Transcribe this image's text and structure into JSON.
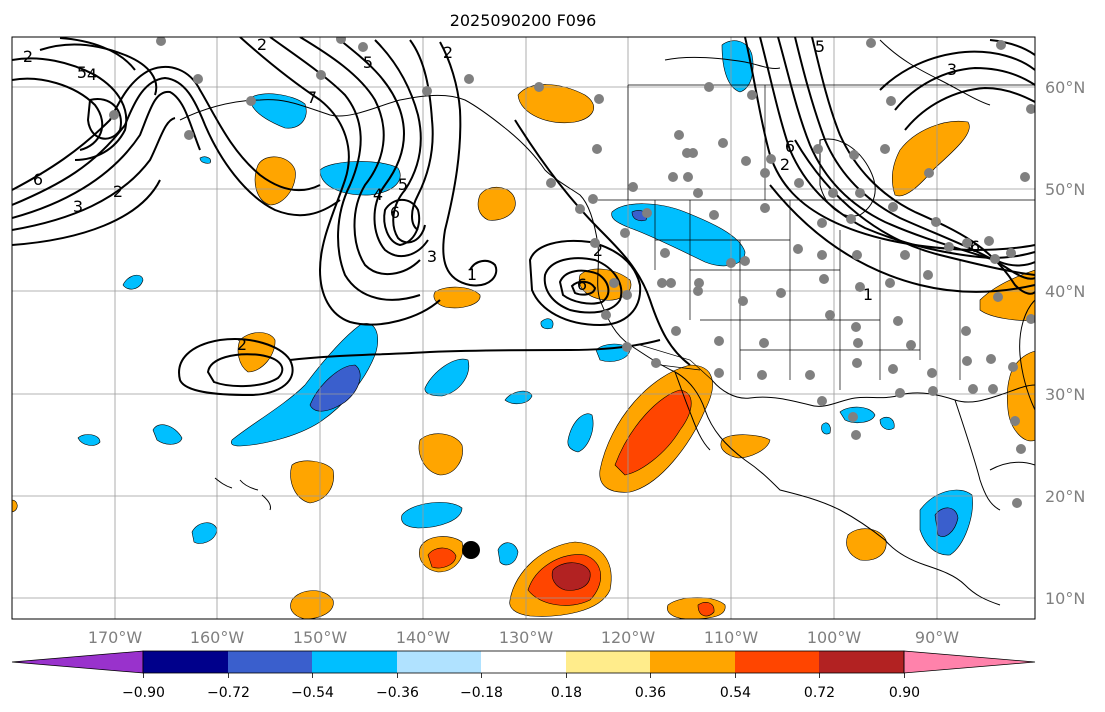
{
  "title": "2025090200 F096",
  "map": {
    "extent_lon": [
      -180,
      -80
    ],
    "extent_lat": [
      8,
      65
    ],
    "lon_ticks": [
      "170°W",
      "160°W",
      "150°W",
      "140°W",
      "130°W",
      "120°W",
      "110°W",
      "100°W",
      "90°W"
    ],
    "lat_ticks": [
      "60°N",
      "50°N",
      "40°N",
      "30°N",
      "20°N",
      "10°N"
    ],
    "contour_labels": [
      "2",
      "4",
      "5",
      "6",
      "3",
      "2",
      "2",
      "7",
      "5",
      "4",
      "6",
      "5",
      "2",
      "3",
      "1",
      "2",
      "6",
      "5",
      "3",
      "2",
      "6",
      "6",
      "1",
      "2"
    ],
    "marker": "reference-point"
  },
  "colorbar": {
    "tick_labels": [
      "−0.90",
      "−0.72",
      "−0.54",
      "−0.36",
      "−0.18",
      "0.18",
      "0.36",
      "0.54",
      "0.72",
      "0.90"
    ],
    "colors": [
      "#9932cc",
      "#00008b",
      "#3a5fcd",
      "#00bfff",
      "#b0e2ff",
      "#ffffff",
      "#ffec8b",
      "#ffa500",
      "#ff4500",
      "#b22222",
      "#ff82ab"
    ]
  }
}
